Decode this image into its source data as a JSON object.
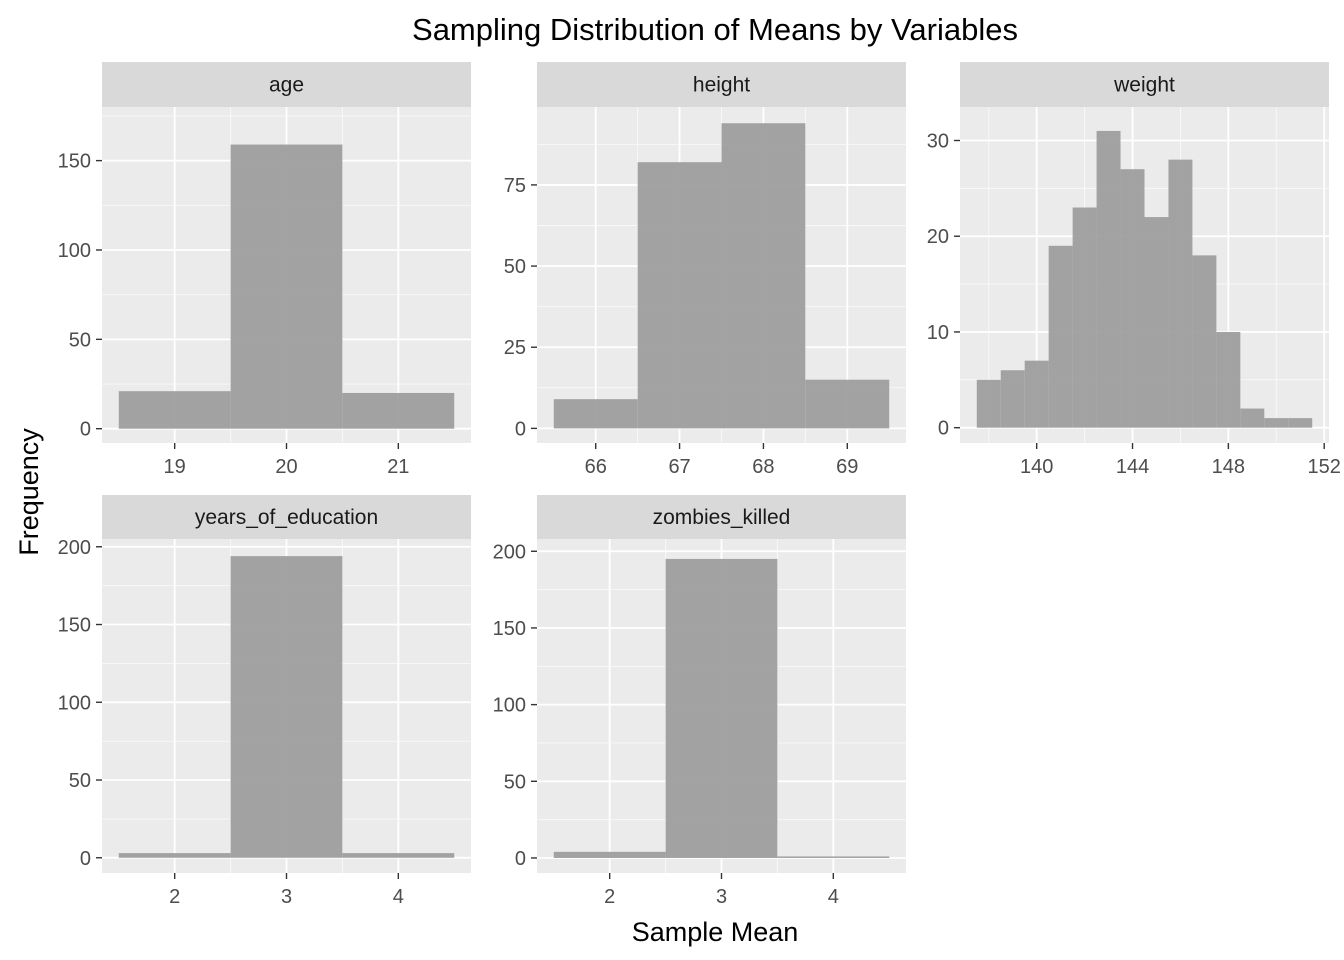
{
  "chart_data": {
    "title": "Sampling Distribution of Means by Variables",
    "xlabel": "Sample Mean",
    "ylabel": "Frequency",
    "type": "bar",
    "colors": {
      "bar": "#9e9e9e",
      "panel_background": "#ebebeb",
      "strip_background": "#d9d9d9",
      "grid": "#ffffff",
      "tick_text": "#4d4d4d"
    },
    "facets": [
      {
        "name": "age",
        "type": "bar",
        "bins": [
          {
            "x0": 18.5,
            "x1": 19.5,
            "count": 21
          },
          {
            "x0": 19.5,
            "x1": 20.5,
            "count": 159
          },
          {
            "x0": 20.5,
            "x1": 21.5,
            "count": 20
          }
        ],
        "xlim": [
          18.35,
          21.65
        ],
        "ylim": [
          -8,
          180
        ],
        "xticks": [
          19,
          20,
          21
        ],
        "yticks": [
          0,
          50,
          100,
          150
        ],
        "xminor": [
          19.5,
          20.5
        ],
        "yminor": [
          25,
          75,
          125,
          175
        ]
      },
      {
        "name": "height",
        "type": "bar",
        "bins": [
          {
            "x0": 65.5,
            "x1": 66.5,
            "count": 9
          },
          {
            "x0": 66.5,
            "x1": 67.5,
            "count": 82
          },
          {
            "x0": 67.5,
            "x1": 68.5,
            "count": 94
          },
          {
            "x0": 68.5,
            "x1": 69.5,
            "count": 15
          }
        ],
        "xlim": [
          65.3,
          69.7
        ],
        "ylim": [
          -4.5,
          99
        ],
        "xticks": [
          66,
          67,
          68,
          69
        ],
        "yticks": [
          0,
          25,
          50,
          75
        ],
        "xminor": [
          66.5,
          67.5,
          68.5
        ],
        "yminor": [
          12.5,
          37.5,
          62.5,
          87.5
        ]
      },
      {
        "name": "weight",
        "type": "bar",
        "bins": [
          {
            "x0": 137.5,
            "x1": 138.5,
            "count": 5
          },
          {
            "x0": 138.5,
            "x1": 139.5,
            "count": 6
          },
          {
            "x0": 139.5,
            "x1": 140.5,
            "count": 7
          },
          {
            "x0": 140.5,
            "x1": 141.5,
            "count": 19
          },
          {
            "x0": 141.5,
            "x1": 142.5,
            "count": 23
          },
          {
            "x0": 142.5,
            "x1": 143.5,
            "count": 31
          },
          {
            "x0": 143.5,
            "x1": 144.5,
            "count": 27
          },
          {
            "x0": 144.5,
            "x1": 145.5,
            "count": 22
          },
          {
            "x0": 145.5,
            "x1": 146.5,
            "count": 28
          },
          {
            "x0": 146.5,
            "x1": 147.5,
            "count": 18
          },
          {
            "x0": 147.5,
            "x1": 148.5,
            "count": 10
          },
          {
            "x0": 148.5,
            "x1": 149.5,
            "count": 2
          },
          {
            "x0": 149.5,
            "x1": 150.5,
            "count": 1
          },
          {
            "x0": 150.5,
            "x1": 151.5,
            "count": 1
          }
        ],
        "xlim": [
          136.8,
          152.2
        ],
        "ylim": [
          -1.6,
          33.5
        ],
        "xticks": [
          140,
          144,
          148,
          152
        ],
        "yticks": [
          0,
          10,
          20,
          30
        ],
        "xminor": [
          138,
          142,
          146,
          150
        ],
        "yminor": [
          5,
          15,
          25
        ]
      },
      {
        "name": "years_of_education",
        "type": "bar",
        "bins": [
          {
            "x0": 1.5,
            "x1": 2.5,
            "count": 3
          },
          {
            "x0": 2.5,
            "x1": 3.5,
            "count": 194
          },
          {
            "x0": 3.5,
            "x1": 4.5,
            "count": 3
          }
        ],
        "xlim": [
          1.35,
          4.65
        ],
        "ylim": [
          -9.8,
          205
        ],
        "xticks": [
          2,
          3,
          4
        ],
        "yticks": [
          0,
          50,
          100,
          150,
          200
        ],
        "xminor": [
          2.5,
          3.5
        ],
        "yminor": [
          25,
          75,
          125,
          175
        ]
      },
      {
        "name": "zombies_killed",
        "type": "bar",
        "bins": [
          {
            "x0": 1.5,
            "x1": 2.5,
            "count": 4
          },
          {
            "x0": 2.5,
            "x1": 3.5,
            "count": 195
          },
          {
            "x0": 3.5,
            "x1": 4.5,
            "count": 1
          }
        ],
        "xlim": [
          1.35,
          4.65
        ],
        "ylim": [
          -9.8,
          208
        ],
        "xticks": [
          2,
          3,
          4
        ],
        "yticks": [
          0,
          50,
          100,
          150,
          200
        ],
        "xminor": [
          2.5,
          3.5
        ],
        "yminor": [
          25,
          75,
          125,
          175
        ]
      }
    ]
  }
}
